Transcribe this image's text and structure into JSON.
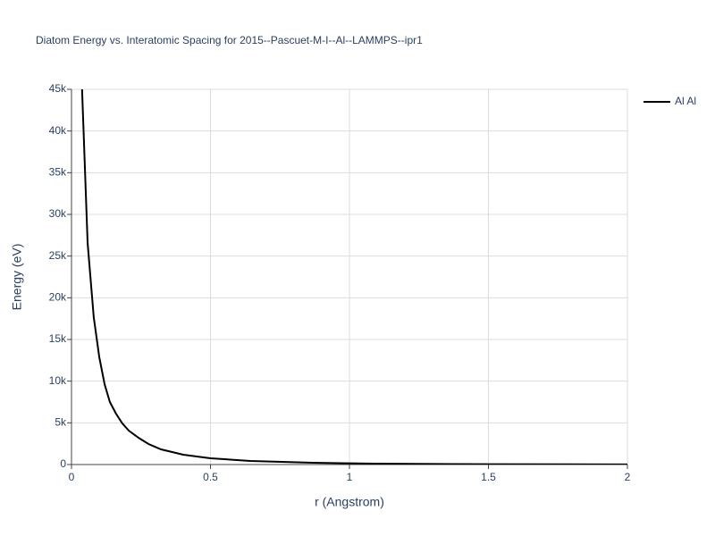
{
  "chart_data": {
    "type": "line",
    "title": "Diatom Energy vs. Interatomic Spacing for 2015--Pascuet-M-I--Al--LAMMPS--ipr1",
    "xlabel": "r (Angstrom)",
    "ylabel": "Energy (eV)",
    "x": [
      0.038,
      0.058,
      0.08,
      0.1,
      0.119,
      0.138,
      0.16,
      0.183,
      0.206,
      0.241,
      0.277,
      0.322,
      0.402,
      0.5,
      0.643,
      0.868,
      1.09,
      1.5,
      2
    ],
    "series": [
      {
        "name": "Al Al",
        "color": "#000000",
        "values": [
          45000,
          26571,
          17680,
          12857,
          9643,
          7500,
          6107,
          4929,
          4071,
          3214,
          2464,
          1821,
          1179,
          750,
          430,
          214,
          107,
          40,
          10
        ]
      }
    ],
    "xlim": [
      0,
      2
    ],
    "xticks": [
      0,
      0.5,
      1,
      1.5,
      2
    ],
    "ylim": [
      0,
      45000
    ],
    "yticks": [
      0,
      {
        "value": 5000,
        "label": "5k"
      },
      {
        "value": 10000,
        "label": "10k"
      },
      {
        "value": 15000,
        "label": "15k"
      },
      {
        "value": 20000,
        "label": "20k"
      },
      {
        "value": 25000,
        "label": "25k"
      },
      {
        "value": 30000,
        "label": "30k"
      },
      {
        "value": 35000,
        "label": "35k"
      },
      {
        "value": 40000,
        "label": "40k"
      },
      {
        "value": 45000,
        "label": "45k"
      }
    ],
    "grid": true,
    "legend": "right"
  }
}
